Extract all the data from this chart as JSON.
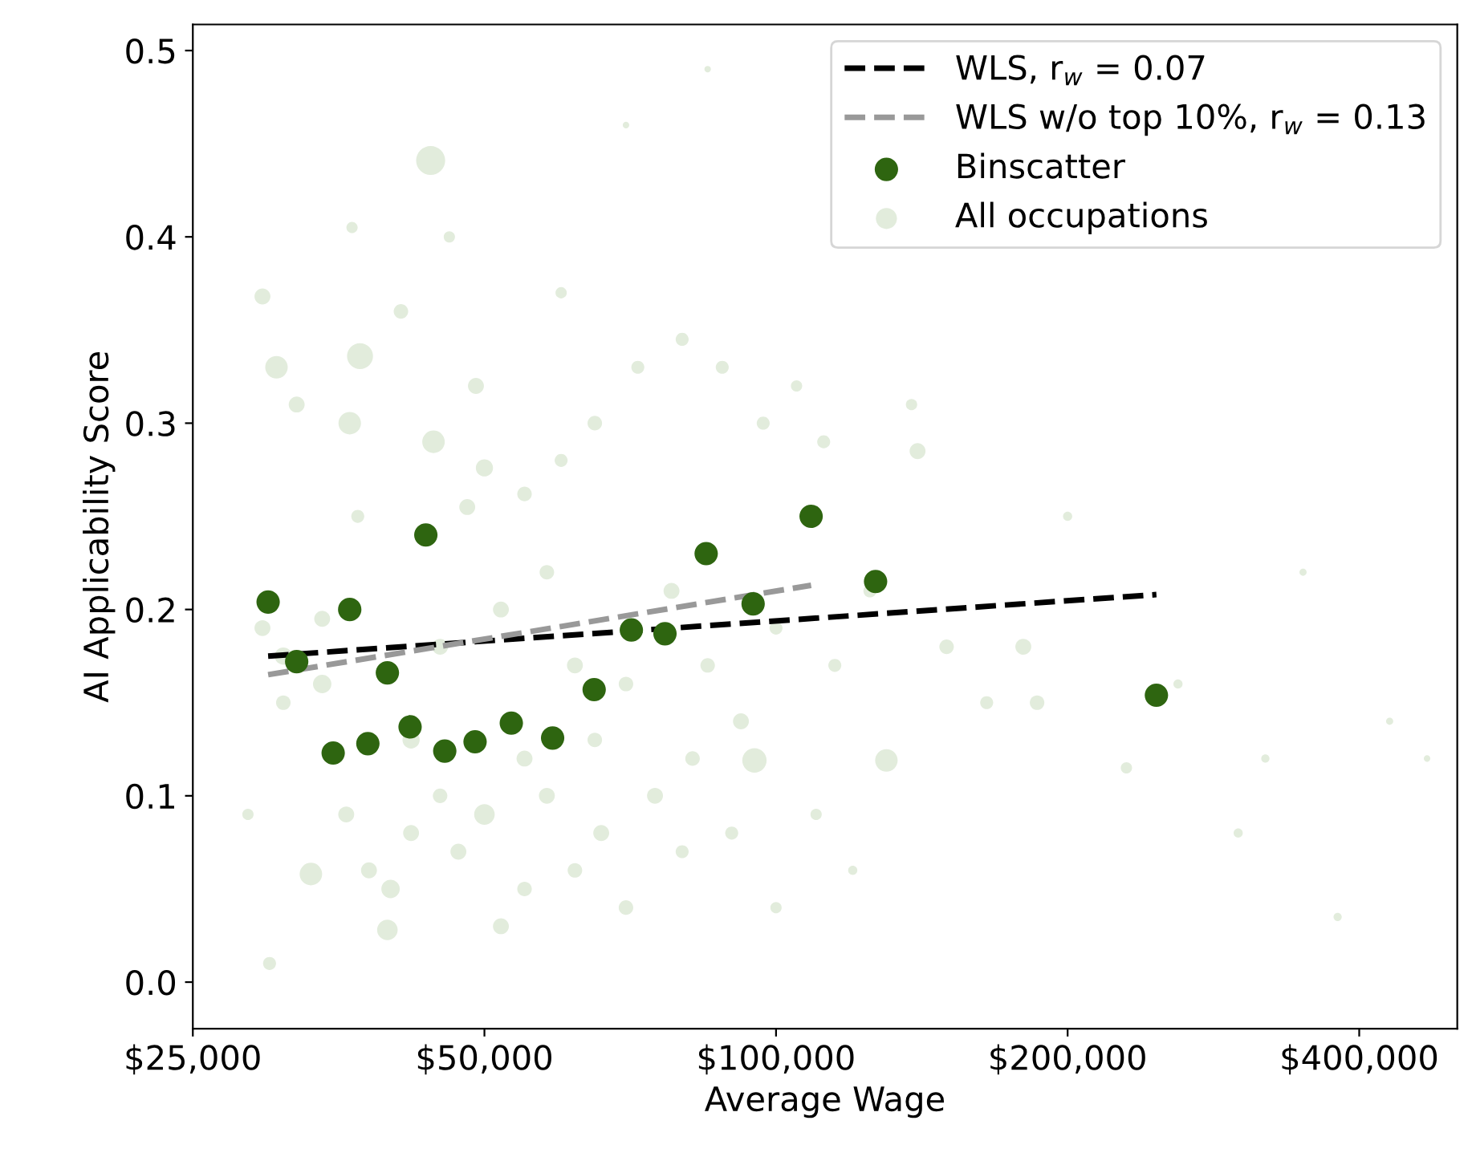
{
  "chart_data": {
    "type": "scatter",
    "xlabel": "Average Wage",
    "ylabel": "AI Applicability Score",
    "log": "x",
    "xlim": [
      25000,
      505000
    ],
    "ylim": [
      -0.025,
      0.514
    ],
    "xticks": [
      {
        "value": 25000,
        "label": "$25,000"
      },
      {
        "value": 50000,
        "label": "$50,000"
      },
      {
        "value": 100000,
        "label": "$100,000"
      },
      {
        "value": 200000,
        "label": "$200,000"
      },
      {
        "value": 400000,
        "label": "$400,000"
      }
    ],
    "yticks": [
      {
        "value": 0,
        "label": "0.0"
      },
      0.1,
      0.2,
      0.3,
      0.4,
      0.5
    ],
    "legend": "top right",
    "marker": "circle",
    "series": [
      {
        "name": "WLS, r$_{w}$ = 0.07",
        "type": "line",
        "line_style": "dashed",
        "marker": "none",
        "color": "#000000",
        "x": [
          29900,
          247000
        ],
        "values": [
          0.175,
          0.208
        ]
      },
      {
        "name": "WLS w/o top 10%, r$_{w}$ = 0.13",
        "type": "line",
        "line_style": "dashed",
        "marker": "none",
        "color": "#999999",
        "x": [
          29900,
          108700
        ],
        "values": [
          0.165,
          0.213
        ]
      },
      {
        "name": "Binscatter",
        "color": "#2e6510",
        "x": [
          29900,
          32000,
          34900,
          36300,
          37900,
          39700,
          41900,
          43500,
          45500,
          48900,
          53300,
          58800,
          64900,
          70900,
          76800,
          84700,
          94700,
          108700,
          126700,
          247000
        ],
        "values": [
          0.204,
          0.172,
          0.123,
          0.2,
          0.128,
          0.166,
          0.137,
          0.24,
          0.124,
          0.129,
          0.139,
          0.131,
          0.157,
          0.189,
          0.187,
          0.23,
          0.203,
          0.25,
          0.215,
          0.154
        ]
      },
      {
        "name": "All occupations",
        "type": "bubble",
        "color": "#e2ecdc",
        "x": [
          44000,
          37200,
          30500,
          36300,
          44300,
          33100,
          39700,
          95000,
          130000,
          29500,
          32000,
          41000,
          36500,
          46000,
          49000,
          50000,
          48000,
          55000,
          60000,
          65000,
          72000,
          80000,
          88000,
          97000,
          105000,
          112000,
          140000,
          138000,
          150000,
          165000,
          180000,
          186000,
          200000,
          230000,
          260000,
          300000,
          320000,
          350000,
          380000,
          430000,
          470000,
          36000,
          38000,
          40000,
          42000,
          45000,
          47000,
          50000,
          52000,
          55000,
          58000,
          62000,
          66000,
          70000,
          75000,
          80000,
          90000,
          100000,
          110000,
          120000,
          30000,
          28500,
          31000,
          34000,
          37000,
          45000,
          52000,
          58000,
          62000,
          70000,
          78000,
          85000,
          92000,
          100000,
          115000,
          125000,
          42000,
          55000,
          65000,
          82000,
          34000,
          31000,
          29500,
          85000,
          70000,
          60000
        ],
        "values": [
          0.441,
          0.336,
          0.33,
          0.3,
          0.29,
          0.058,
          0.028,
          0.119,
          0.119,
          0.368,
          0.31,
          0.36,
          0.405,
          0.4,
          0.32,
          0.276,
          0.255,
          0.262,
          0.28,
          0.3,
          0.33,
          0.345,
          0.33,
          0.3,
          0.32,
          0.29,
          0.285,
          0.31,
          0.18,
          0.15,
          0.18,
          0.15,
          0.25,
          0.115,
          0.16,
          0.08,
          0.12,
          0.22,
          0.035,
          0.14,
          0.12,
          0.09,
          0.06,
          0.05,
          0.08,
          0.1,
          0.07,
          0.09,
          0.03,
          0.05,
          0.1,
          0.06,
          0.08,
          0.04,
          0.1,
          0.07,
          0.08,
          0.04,
          0.09,
          0.06,
          0.01,
          0.09,
          0.15,
          0.195,
          0.25,
          0.18,
          0.2,
          0.22,
          0.17,
          0.16,
          0.21,
          0.17,
          0.14,
          0.19,
          0.17,
          0.21,
          0.13,
          0.12,
          0.13,
          0.12,
          0.16,
          0.175,
          0.19,
          0.49,
          0.46,
          0.37
        ],
        "sizes": [
          1.0,
          0.8,
          0.6,
          0.6,
          0.6,
          0.6,
          0.5,
          0.7,
          0.6,
          0.3,
          0.3,
          0.25,
          0.15,
          0.15,
          0.3,
          0.35,
          0.3,
          0.25,
          0.2,
          0.25,
          0.2,
          0.2,
          0.2,
          0.2,
          0.15,
          0.2,
          0.3,
          0.15,
          0.25,
          0.2,
          0.3,
          0.25,
          0.1,
          0.15,
          0.1,
          0.1,
          0.08,
          0.06,
          0.08,
          0.06,
          0.05,
          0.3,
          0.3,
          0.4,
          0.3,
          0.25,
          0.3,
          0.5,
          0.3,
          0.25,
          0.3,
          0.25,
          0.3,
          0.25,
          0.3,
          0.2,
          0.2,
          0.15,
          0.15,
          0.1,
          0.2,
          0.15,
          0.25,
          0.3,
          0.2,
          0.3,
          0.3,
          0.25,
          0.3,
          0.25,
          0.3,
          0.25,
          0.3,
          0.2,
          0.2,
          0.2,
          0.35,
          0.3,
          0.25,
          0.25,
          0.4,
          0.35,
          0.3,
          0.05,
          0.05,
          0.15
        ]
      }
    ]
  }
}
